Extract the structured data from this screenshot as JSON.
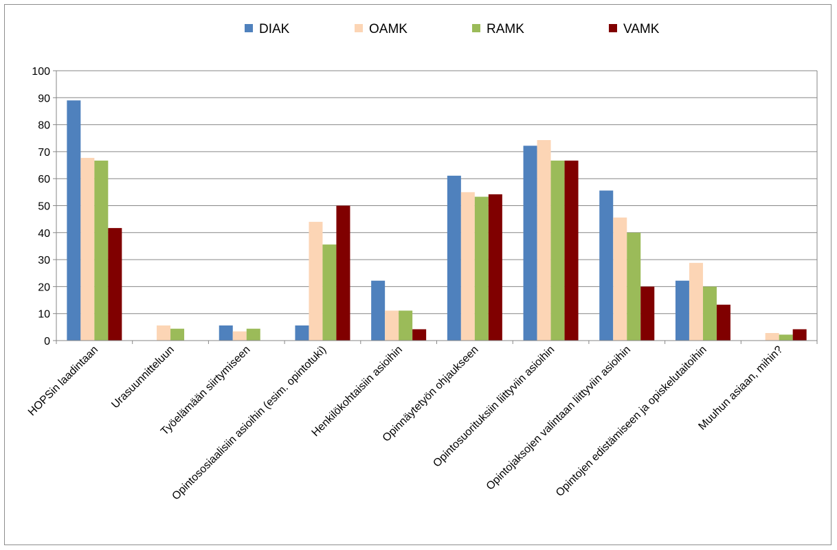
{
  "chart_data": {
    "type": "bar",
    "categories": [
      "HOPSin laadintaan",
      "Urasuunnitteluun",
      "Työelämään siirtymiseen",
      "Opintososiaalisiin asioihin (esim. opintotuki)",
      "Henkilökohtaisiin asioihin",
      "Opinnäytetyön ohjaukseen",
      "Opintosuorituksiin liittyviin asioihin",
      "Opintojaksojen valintaan liittyviin asioihin",
      "Opintojen edistämiseen ja opiskelutaitoihin",
      "Muuhun asiaan, mihin?"
    ],
    "series": [
      {
        "name": "DIAK",
        "color": "#4f81bd",
        "values": [
          89,
          0,
          5.6,
          5.6,
          22.2,
          61.1,
          72.2,
          55.6,
          22.2,
          0
        ]
      },
      {
        "name": "OAMK",
        "color": "#fcd5b5",
        "values": [
          67.7,
          5.6,
          3.4,
          44,
          11.1,
          55,
          74.3,
          45.6,
          28.8,
          2.8
        ]
      },
      {
        "name": "RAMK",
        "color": "#9bbb59",
        "values": [
          66.7,
          4.4,
          4.4,
          35.6,
          11.1,
          53.3,
          66.7,
          40,
          20,
          2.2
        ]
      },
      {
        "name": "VAMK",
        "color": "#800000",
        "values": [
          41.7,
          0,
          0,
          50,
          4.2,
          54.2,
          66.7,
          20,
          13.3,
          4.2
        ]
      }
    ],
    "ylim": [
      0,
      100
    ],
    "yticks": [
      "0",
      "10",
      "20",
      "30",
      "40",
      "50",
      "60",
      "70",
      "80",
      "90",
      "100"
    ],
    "grid": true,
    "legend": "top-center"
  }
}
